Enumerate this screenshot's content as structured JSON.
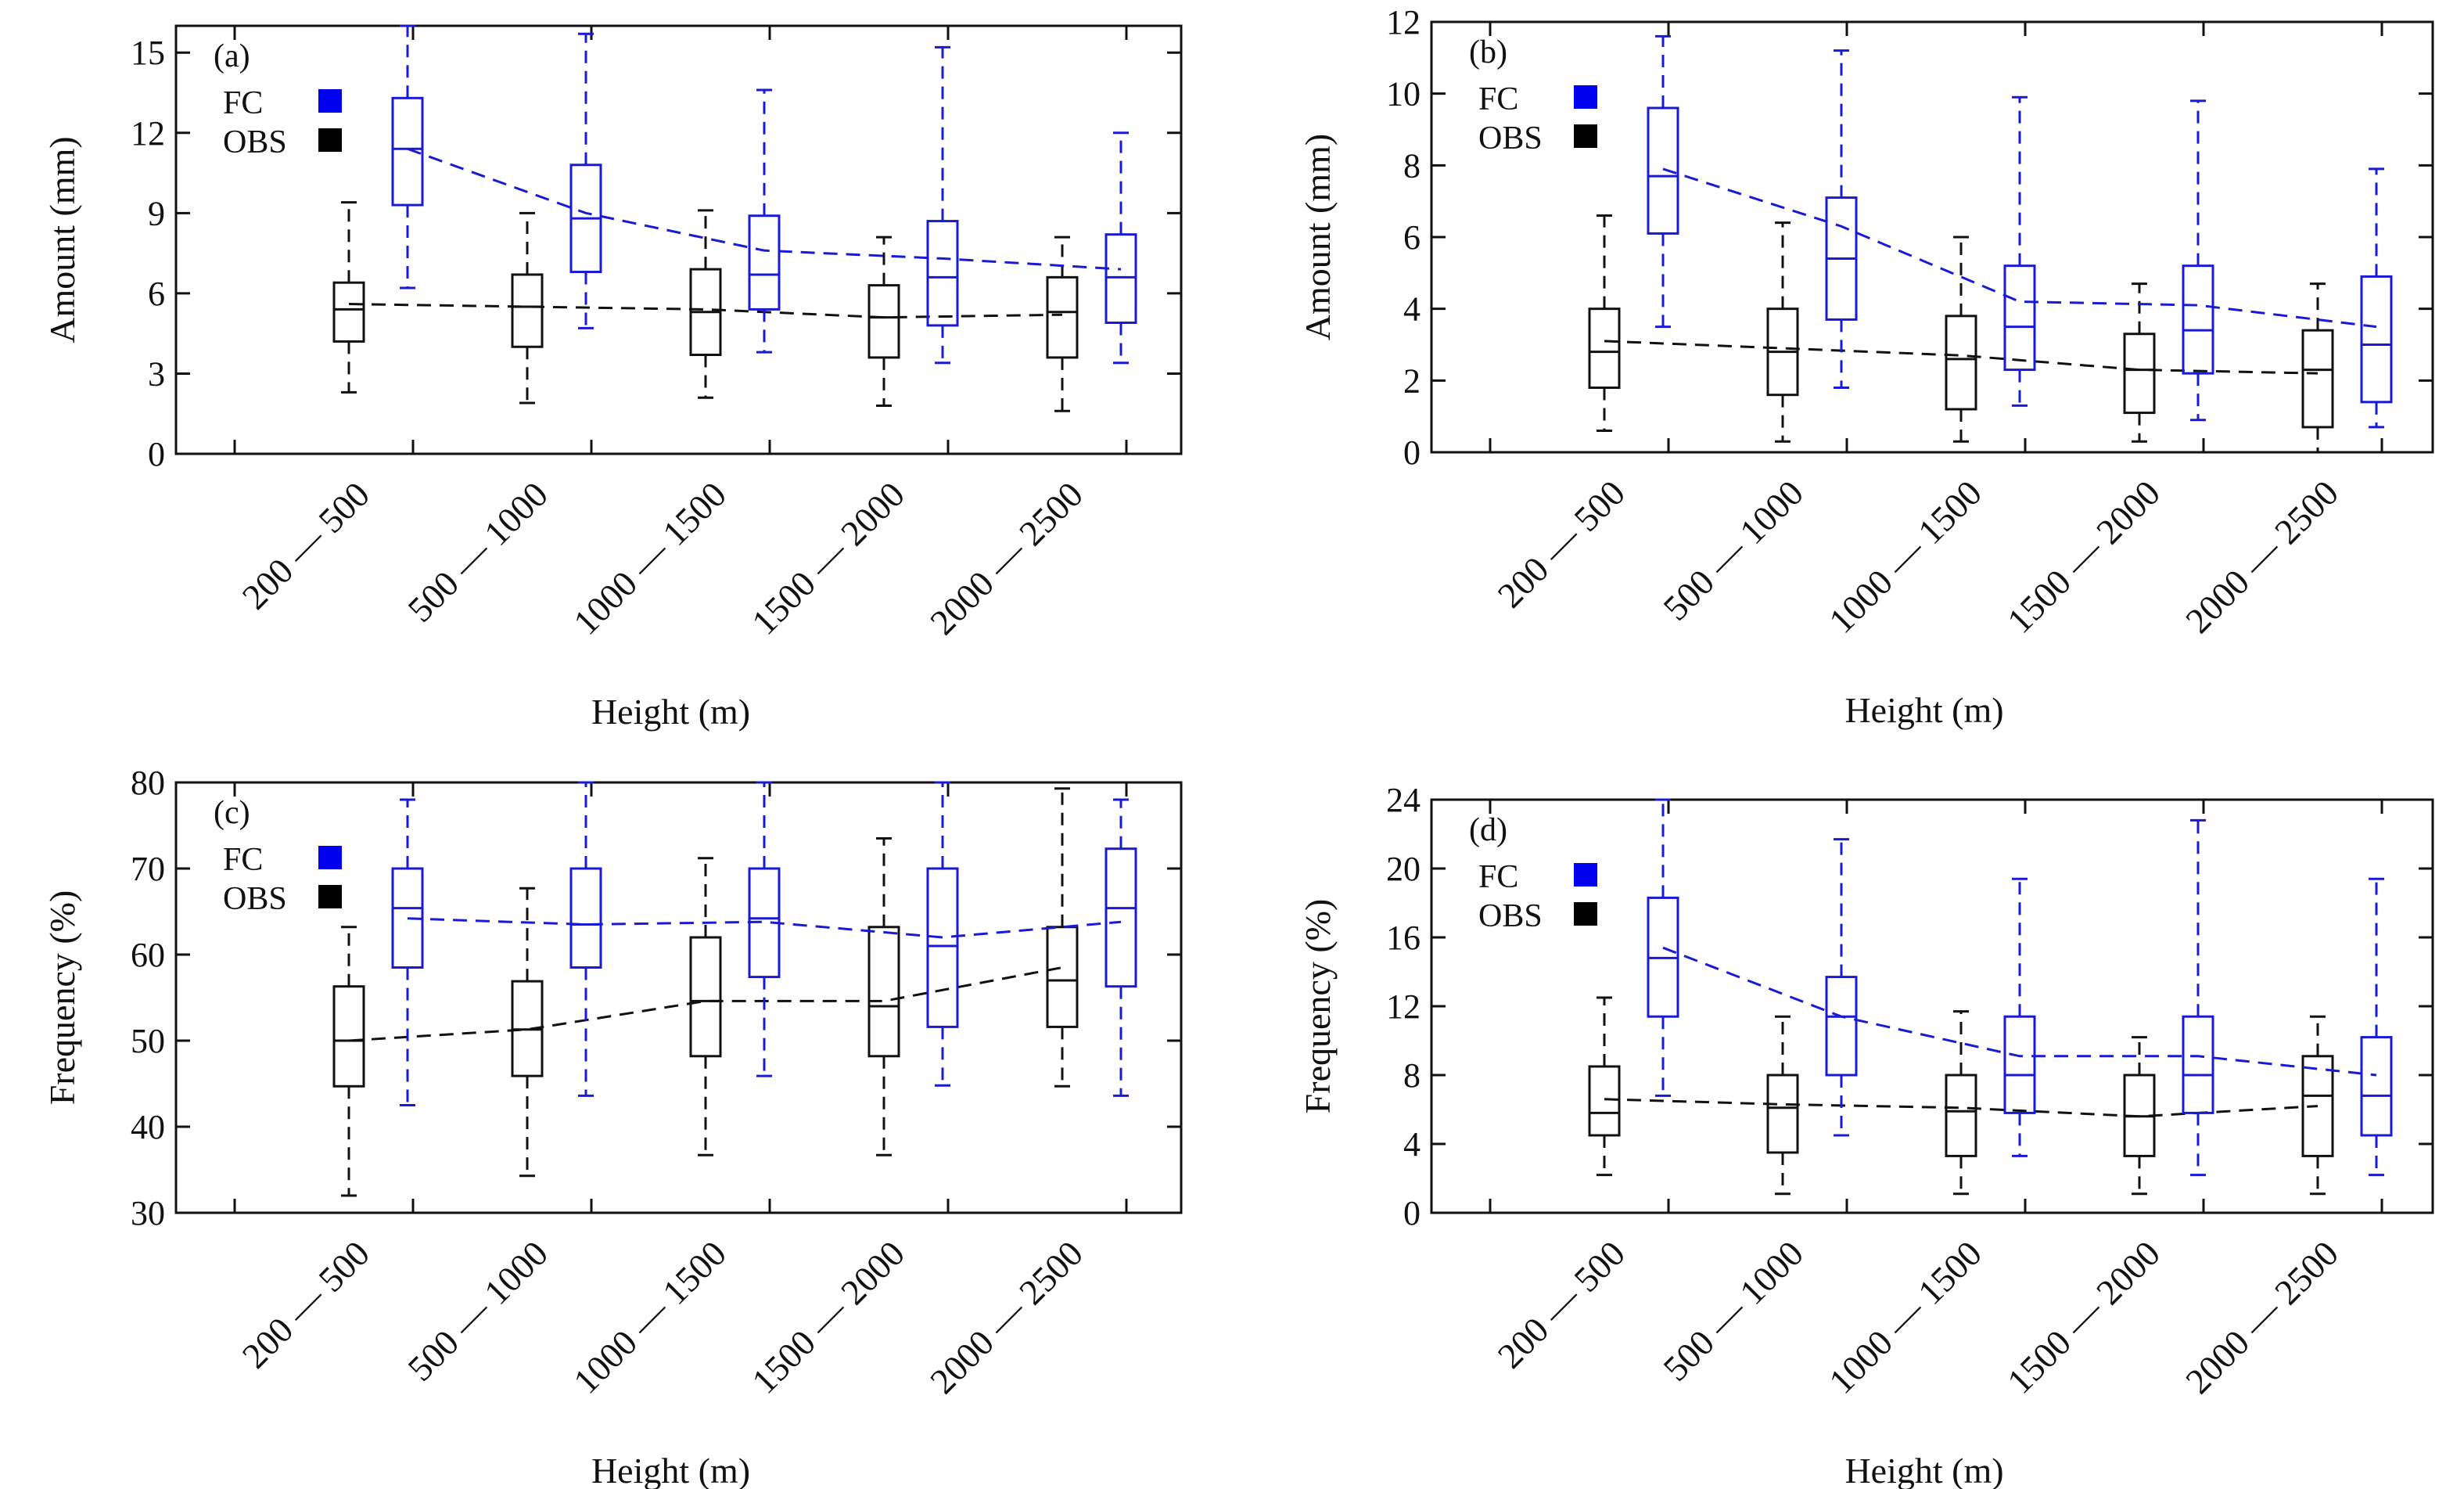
{
  "colors": {
    "fc": "#1a1ad6",
    "obs": "#111111",
    "legend_fc": "#0000ee",
    "legend_obs": "#000000"
  },
  "chart_data": [
    {
      "type": "boxplot",
      "panel": "(a)",
      "xlabel": "Height (m)",
      "ylabel": "Amount (mm)",
      "ylim": [
        0,
        16
      ],
      "yticks": [
        "0",
        "3",
        "6",
        "9",
        "12",
        "15"
      ],
      "categories": [
        "200 — 500",
        "500 — 1000",
        "1000 — 1500",
        "1500 — 2000",
        "2000 — 2500"
      ],
      "legend": [
        "FC",
        "OBS"
      ],
      "series": [
        {
          "name": "OBS",
          "stats": [
            [
              2.3,
              4.2,
              5.4,
              6.4,
              9.4
            ],
            [
              1.9,
              4.0,
              5.5,
              6.7,
              9.0
            ],
            [
              2.1,
              3.7,
              5.3,
              6.9,
              9.1
            ],
            [
              1.8,
              3.6,
              5.1,
              6.3,
              8.1
            ],
            [
              1.6,
              3.6,
              5.3,
              6.6,
              8.1
            ]
          ],
          "mean": [
            5.6,
            5.5,
            5.4,
            5.1,
            5.2
          ]
        },
        {
          "name": "FC",
          "stats": [
            [
              6.2,
              9.3,
              11.4,
              13.3,
              16.0
            ],
            [
              4.7,
              6.8,
              8.8,
              10.8,
              15.7
            ],
            [
              3.8,
              5.4,
              6.7,
              8.9,
              13.6
            ],
            [
              3.4,
              4.8,
              6.6,
              8.7,
              15.2
            ],
            [
              3.4,
              4.9,
              6.6,
              8.2,
              12.0
            ]
          ],
          "mean": [
            11.4,
            9.0,
            7.6,
            7.3,
            6.9
          ]
        }
      ]
    },
    {
      "type": "boxplot",
      "panel": "(b)",
      "xlabel": "Height (m)",
      "ylabel": "Amount (mm)",
      "ylim": [
        0,
        12
      ],
      "yticks": [
        "0",
        "2",
        "4",
        "6",
        "8",
        "10",
        "12"
      ],
      "categories": [
        "200 — 500",
        "500 — 1000",
        "1000 — 1500",
        "1500 — 2000",
        "2000 — 2500"
      ],
      "legend": [
        "FC",
        "OBS"
      ],
      "series": [
        {
          "name": "OBS",
          "stats": [
            [
              0.6,
              1.8,
              2.8,
              4.0,
              6.6
            ],
            [
              0.3,
              1.6,
              2.8,
              4.0,
              6.4
            ],
            [
              0.3,
              1.2,
              2.6,
              3.8,
              6.0
            ],
            [
              0.3,
              1.1,
              2.3,
              3.3,
              4.7
            ],
            [
              0.0,
              0.7,
              2.3,
              3.4,
              4.7
            ]
          ],
          "mean": [
            3.1,
            2.9,
            2.7,
            2.3,
            2.2
          ]
        },
        {
          "name": "FC",
          "stats": [
            [
              3.5,
              6.1,
              7.7,
              9.6,
              11.6
            ],
            [
              1.8,
              3.7,
              5.4,
              7.1,
              11.2
            ],
            [
              1.3,
              2.3,
              3.5,
              5.2,
              9.9
            ],
            [
              0.9,
              2.2,
              3.4,
              5.2,
              9.8
            ],
            [
              0.7,
              1.4,
              3.0,
              4.9,
              7.9
            ]
          ],
          "mean": [
            7.9,
            6.3,
            4.2,
            4.1,
            3.5
          ]
        }
      ]
    },
    {
      "type": "boxplot",
      "panel": "(c)",
      "xlabel": "Height (m)",
      "ylabel": "Frequency (%)",
      "ylim": [
        30,
        80
      ],
      "yticks": [
        "30",
        "40",
        "50",
        "60",
        "70",
        "80"
      ],
      "categories": [
        "200 — 500",
        "500 — 1000",
        "1000 — 1500",
        "1500 — 2000",
        "2000 — 2500"
      ],
      "legend": [
        "FC",
        "OBS"
      ],
      "series": [
        {
          "name": "OBS",
          "stats": [
            [
              32.0,
              44.7,
              50.0,
              56.3,
              63.2
            ],
            [
              34.3,
              45.9,
              51.3,
              56.9,
              67.7
            ],
            [
              36.7,
              48.2,
              54.6,
              62.0,
              71.2
            ],
            [
              36.7,
              48.2,
              54.0,
              63.2,
              73.5
            ],
            [
              44.7,
              51.6,
              57.0,
              63.2,
              79.3
            ]
          ],
          "mean": [
            50.0,
            51.3,
            54.6,
            54.6,
            58.5
          ]
        },
        {
          "name": "FC",
          "stats": [
            [
              42.5,
              58.5,
              65.4,
              70.0,
              78.0
            ],
            [
              43.6,
              58.5,
              63.5,
              70.0,
              80.0
            ],
            [
              45.9,
              57.4,
              64.2,
              70.0,
              80.0
            ],
            [
              44.8,
              51.6,
              61.0,
              70.0,
              80.0
            ],
            [
              43.6,
              56.3,
              65.4,
              72.3,
              78.0
            ]
          ],
          "mean": [
            64.2,
            63.5,
            63.8,
            62.0,
            63.8
          ]
        }
      ]
    },
    {
      "type": "boxplot",
      "panel": "(d)",
      "xlabel": "Height (m)",
      "ylabel": "Frequency (%)",
      "ylim": [
        0,
        24
      ],
      "yticks": [
        "0",
        "4",
        "8",
        "12",
        "16",
        "20",
        "24"
      ],
      "categories": [
        "200 — 500",
        "500 — 1000",
        "1000 — 1500",
        "1500 — 2000",
        "2000 — 2500"
      ],
      "legend": [
        "FC",
        "OBS"
      ],
      "series": [
        {
          "name": "OBS",
          "stats": [
            [
              2.2,
              4.5,
              5.8,
              8.5,
              12.5
            ],
            [
              1.1,
              3.5,
              6.1,
              8.0,
              11.4
            ],
            [
              1.1,
              3.3,
              5.9,
              8.0,
              11.7
            ],
            [
              1.1,
              3.3,
              5.6,
              8.0,
              10.2
            ],
            [
              1.1,
              3.3,
              6.8,
              9.1,
              11.4
            ]
          ],
          "mean": [
            6.6,
            6.3,
            6.1,
            5.6,
            6.2
          ]
        },
        {
          "name": "FC",
          "stats": [
            [
              6.8,
              11.4,
              14.8,
              18.3,
              24.0
            ],
            [
              4.5,
              8.0,
              11.4,
              13.7,
              21.7
            ],
            [
              3.3,
              5.8,
              8.0,
              11.4,
              19.4
            ],
            [
              2.2,
              5.8,
              8.0,
              11.4,
              22.8
            ],
            [
              2.2,
              4.5,
              6.8,
              10.2,
              19.4
            ]
          ],
          "mean": [
            15.4,
            11.4,
            9.1,
            9.1,
            8.0
          ]
        }
      ]
    }
  ]
}
